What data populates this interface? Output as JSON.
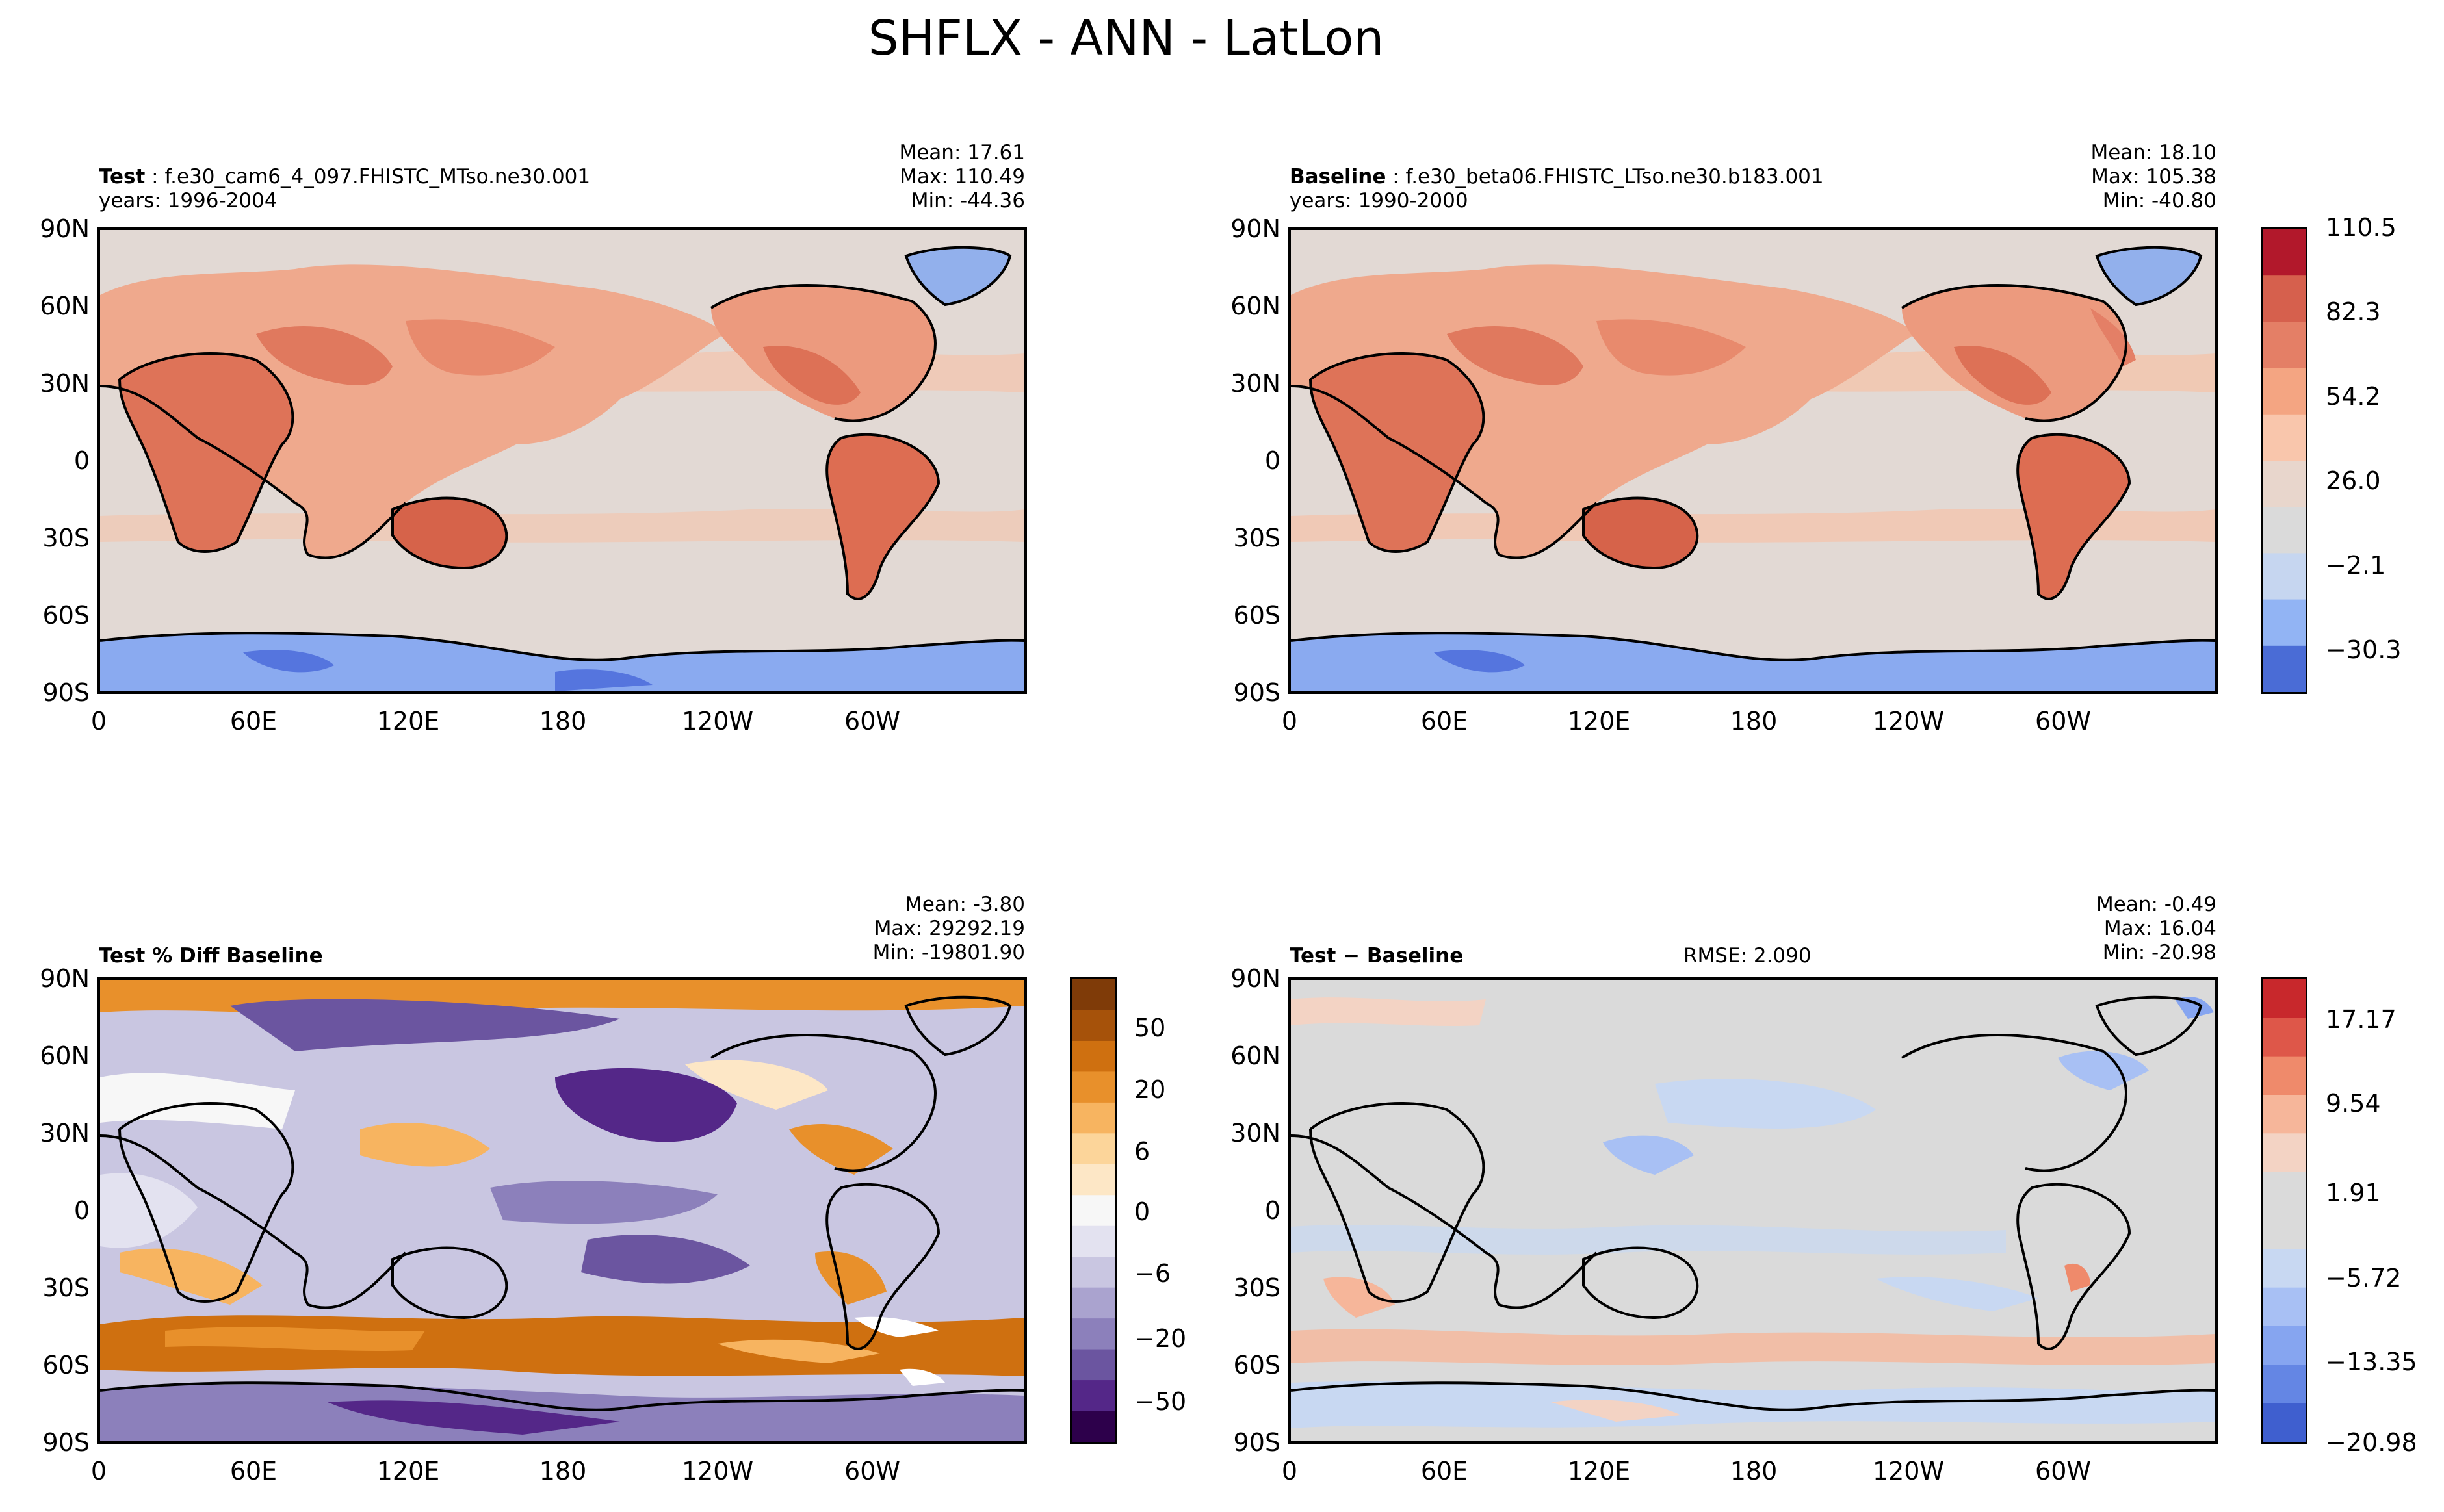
{
  "figure": {
    "title": "SHFLX - ANN - LatLon"
  },
  "chart_data": [
    {
      "type": "heatmap",
      "panel": "test",
      "label": "Test",
      "case": "f.e30_cam6_4_097.FHISTC_MTso.ne30.001",
      "years": "years: 1996-2004",
      "stats": {
        "mean": "Mean: 17.61",
        "max": "Max: 110.49",
        "min": "Min: -44.36"
      },
      "x_ticks": [
        "0",
        "60E",
        "120E",
        "180",
        "120W",
        "60W"
      ],
      "y_ticks": [
        "90N",
        "60N",
        "30N",
        "0",
        "30S",
        "60S",
        "90S"
      ],
      "xlim": [
        0,
        360
      ],
      "ylim": [
        -90,
        90
      ]
    },
    {
      "type": "heatmap",
      "panel": "baseline",
      "label": "Baseline",
      "case": "f.e30_beta06.FHISTC_LTso.ne30.b183.001",
      "years": "years: 1990-2000",
      "stats": {
        "mean": "Mean: 18.10",
        "max": "Max: 105.38",
        "min": "Min: -40.80"
      },
      "x_ticks": [
        "0",
        "60E",
        "120E",
        "180",
        "120W",
        "60W"
      ],
      "y_ticks": [
        "90N",
        "60N",
        "30N",
        "0",
        "30S",
        "60S",
        "90S"
      ],
      "colorbar_ticks": [
        "110.5",
        "82.3",
        "54.2",
        "26.0",
        "−2.1",
        "−30.3"
      ],
      "colorbar_colors": [
        "#b2182b",
        "#d6604d",
        "#e47f66",
        "#f4a582",
        "#f9c6ac",
        "#e8d6cc",
        "#dadada",
        "#c6d6f0",
        "#92b4f4",
        "#4a6cd6"
      ]
    },
    {
      "type": "heatmap",
      "panel": "pct_diff",
      "label": "Test % Diff Baseline",
      "stats": {
        "mean": "Mean: -3.80",
        "max": "Max: 29292.19",
        "min": "Min: -19801.90"
      },
      "x_ticks": [
        "0",
        "60E",
        "120E",
        "180",
        "120W",
        "60W"
      ],
      "y_ticks": [
        "90N",
        "60N",
        "30N",
        "0",
        "30S",
        "60S",
        "90S"
      ],
      "colorbar_ticks": [
        "50",
        "20",
        "6",
        "0",
        "−6",
        "−20",
        "−50"
      ],
      "colorbar_colors": [
        "#7f3b08",
        "#a6520a",
        "#cf7010",
        "#e8902b",
        "#f7b460",
        "#fcd59a",
        "#fde7c6",
        "#f7f7f7",
        "#e3e2f0",
        "#c9c6e1",
        "#aaa3cf",
        "#8c80bb",
        "#6b55a0",
        "#542788",
        "#2d004b"
      ]
    },
    {
      "type": "heatmap",
      "panel": "diff",
      "label": "Test − Baseline",
      "rmse": "RMSE: 2.090",
      "stats": {
        "mean": "Mean: -0.49",
        "max": "Max: 16.04",
        "min": "Min: -20.98"
      },
      "x_ticks": [
        "0",
        "60E",
        "120E",
        "180",
        "120W",
        "60W"
      ],
      "y_ticks": [
        "90N",
        "60N",
        "30N",
        "0",
        "30S",
        "60S",
        "90S"
      ],
      "colorbar_ticks": [
        "17.17",
        "9.54",
        "1.91",
        "−5.72",
        "−13.35",
        "−20.98"
      ],
      "colorbar_colors": [
        "#c8282c",
        "#de5749",
        "#ef8a6b",
        "#f6b69a",
        "#f3d3c4",
        "#dadada",
        "#dadada",
        "#c8d8f2",
        "#a8c0f4",
        "#86a5f0",
        "#6486e4",
        "#3f5fcf"
      ]
    }
  ]
}
